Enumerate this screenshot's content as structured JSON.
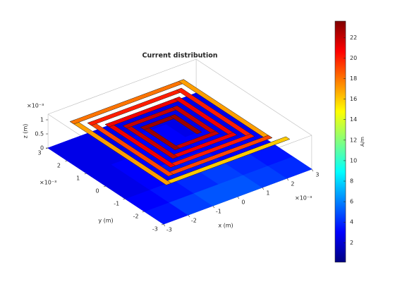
{
  "chart_data": {
    "type": "surface3d",
    "title": "Current distribution",
    "xlabel": "x (m)",
    "ylabel": "y (m)",
    "zlabel": "z (m)",
    "x_exponent": "×10⁻³",
    "y_exponent": "×10⁻³",
    "z_exponent": "×10⁻³",
    "xlim": [
      -3,
      3
    ],
    "ylim": [
      -3,
      3
    ],
    "zlim": [
      0,
      1.2
    ],
    "xticks": [
      -3,
      -2,
      -1,
      0,
      1,
      2,
      3
    ],
    "yticks": [
      -3,
      -2,
      -1,
      0,
      1,
      2,
      3
    ],
    "zticks": [
      0,
      0.5,
      1
    ],
    "colorbar": {
      "label": "A/m",
      "clim": [
        0.1,
        23.6
      ],
      "ticks": [
        2,
        4,
        6,
        8,
        10,
        12,
        14,
        16,
        18,
        20,
        22
      ]
    },
    "ground": {
      "z": 0,
      "x_edges": [
        -3,
        -2,
        -1,
        0,
        1,
        2,
        3
      ],
      "y_edges": [
        -3,
        -2,
        -1,
        0,
        1,
        2,
        3
      ],
      "values": [
        [
          3.5,
          4.5,
          5,
          5,
          4.5,
          4
        ],
        [
          3,
          3.5,
          4,
          4.5,
          4,
          3.5
        ],
        [
          2.5,
          3,
          3.5,
          3.5,
          3,
          3
        ],
        [
          2.5,
          3,
          3,
          3,
          3,
          2.5
        ],
        [
          2.5,
          2.5,
          3,
          3,
          2.5,
          2.5
        ],
        [
          2.5,
          2.5,
          2.5,
          2.5,
          2.5,
          2.5
        ]
      ]
    },
    "spiral_z": 1,
    "strip_width": 0.2,
    "spiral": [
      {
        "x": [
          2.4,
          -2.4
        ],
        "y": [
          -2.4,
          -2.4
        ],
        "value": 16
      },
      {
        "x": [
          -2.4,
          -2.4
        ],
        "y": [
          -2.4,
          2.4
        ],
        "value": 17
      },
      {
        "x": [
          -2.4,
          2.0
        ],
        "y": [
          2.4,
          2.4
        ],
        "value": 18
      },
      {
        "x": [
          2.0,
          2.0
        ],
        "y": [
          2.4,
          -2.0
        ],
        "value": 17
      },
      {
        "x": [
          2.0,
          -2.0
        ],
        "y": [
          -2.0,
          -2.0
        ],
        "value": 19
      },
      {
        "x": [
          -2.0,
          -2.0
        ],
        "y": [
          -2.0,
          2.0
        ],
        "value": 19
      },
      {
        "x": [
          -2.0,
          1.6
        ],
        "y": [
          2.0,
          2.0
        ],
        "value": 20
      },
      {
        "x": [
          1.6,
          1.6
        ],
        "y": [
          2.0,
          -1.6
        ],
        "value": 20
      },
      {
        "x": [
          1.6,
          -1.6
        ],
        "y": [
          -1.6,
          -1.6
        ],
        "value": 20
      },
      {
        "x": [
          -1.6,
          -1.6
        ],
        "y": [
          -1.6,
          1.6
        ],
        "value": 21
      },
      {
        "x": [
          -1.6,
          1.2
        ],
        "y": [
          1.6,
          1.6
        ],
        "value": 21
      },
      {
        "x": [
          1.2,
          1.2
        ],
        "y": [
          1.6,
          -1.2
        ],
        "value": 21
      },
      {
        "x": [
          1.2,
          -1.2
        ],
        "y": [
          -1.2,
          -1.2
        ],
        "value": 21
      },
      {
        "x": [
          -1.2,
          -1.2
        ],
        "y": [
          -1.2,
          1.2
        ],
        "value": 22
      },
      {
        "x": [
          -1.2,
          0.8
        ],
        "y": [
          1.2,
          1.2
        ],
        "value": 22
      },
      {
        "x": [
          0.8,
          0.8
        ],
        "y": [
          1.2,
          -0.8
        ],
        "value": 22
      },
      {
        "x": [
          0.8,
          -0.8
        ],
        "y": [
          -0.8,
          -0.8
        ],
        "value": 22
      },
      {
        "x": [
          -0.8,
          -0.8
        ],
        "y": [
          -0.8,
          0.8
        ],
        "value": 23
      },
      {
        "x": [
          -0.8,
          0.4
        ],
        "y": [
          0.8,
          0.8
        ],
        "value": 23
      },
      {
        "x": [
          0.4,
          0.4
        ],
        "y": [
          0.8,
          -0.4
        ],
        "value": 23
      }
    ]
  }
}
